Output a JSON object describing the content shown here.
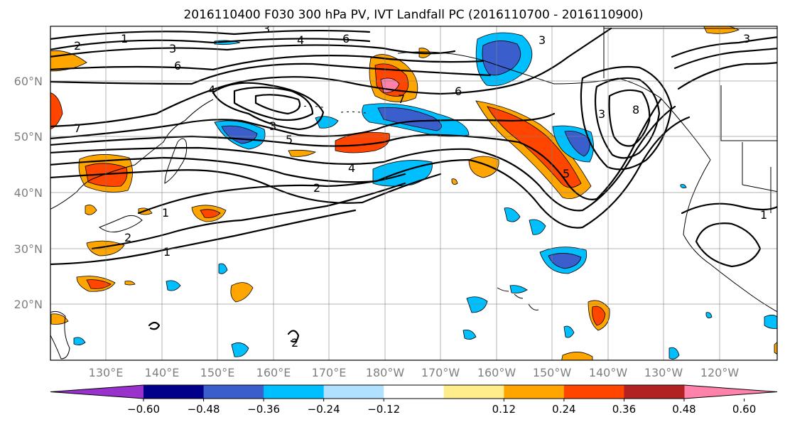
{
  "title": "2016110400 F030 300 hPa PV, IVT Landfall PC (2016110700 - 2016110900)",
  "map": {
    "lat_labels": [
      "60°N",
      "50°N",
      "40°N",
      "30°N",
      "20°N"
    ],
    "lon_labels": [
      "130°E",
      "140°E",
      "150°E",
      "160°E",
      "170°E",
      "180°W",
      "170°W",
      "160°W",
      "150°W",
      "140°W",
      "130°W",
      "120°W"
    ],
    "contour_labels": [
      "1",
      "2",
      "3",
      "6",
      "4",
      "5",
      "6",
      "7",
      "3",
      "2",
      "1",
      "4",
      "5",
      "6",
      "8",
      "3",
      "1",
      "2",
      "1",
      "4",
      "2",
      "1",
      "2",
      "1",
      "1"
    ]
  },
  "colorbar": {
    "ticks": [
      "-0.60",
      "-0.48",
      "-0.36",
      "-0.24",
      "-0.12",
      "0.12",
      "0.24",
      "0.36",
      "0.48",
      "0.60"
    ],
    "colors": [
      "#9932cc",
      "#00008b",
      "#3a5fcd",
      "#00bfff",
      "#b0e2ff",
      "#ffffff",
      "#ffec8b",
      "#ffa500",
      "#ff4500",
      "#b22222",
      "#ff82ab"
    ]
  }
}
